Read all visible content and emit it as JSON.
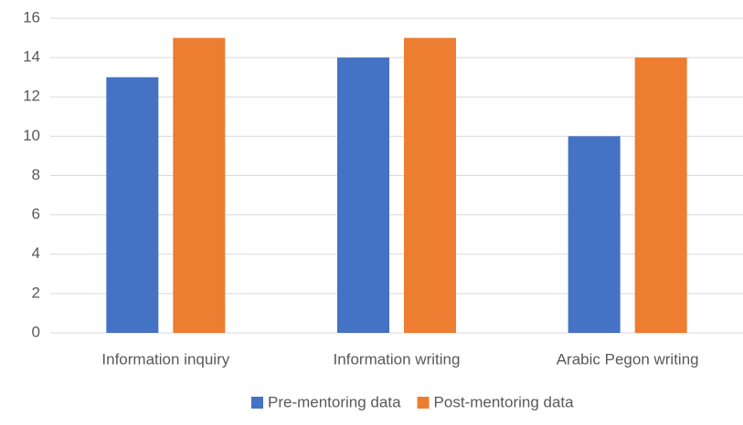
{
  "chart_data": {
    "type": "bar",
    "categories": [
      "Information inquiry",
      "Information writing",
      "Arabic Pegon writing"
    ],
    "series": [
      {
        "name": "Pre-mentoring data",
        "color": "#4472c4",
        "values": [
          13,
          14,
          10
        ]
      },
      {
        "name": "Post-mentoring data",
        "color": "#ed7d31",
        "values": [
          15,
          15,
          14
        ]
      }
    ],
    "ylim": [
      0,
      16
    ],
    "yticks": [
      0,
      2,
      4,
      6,
      8,
      10,
      12,
      14,
      16
    ],
    "grid": true,
    "legend": "bottom"
  }
}
